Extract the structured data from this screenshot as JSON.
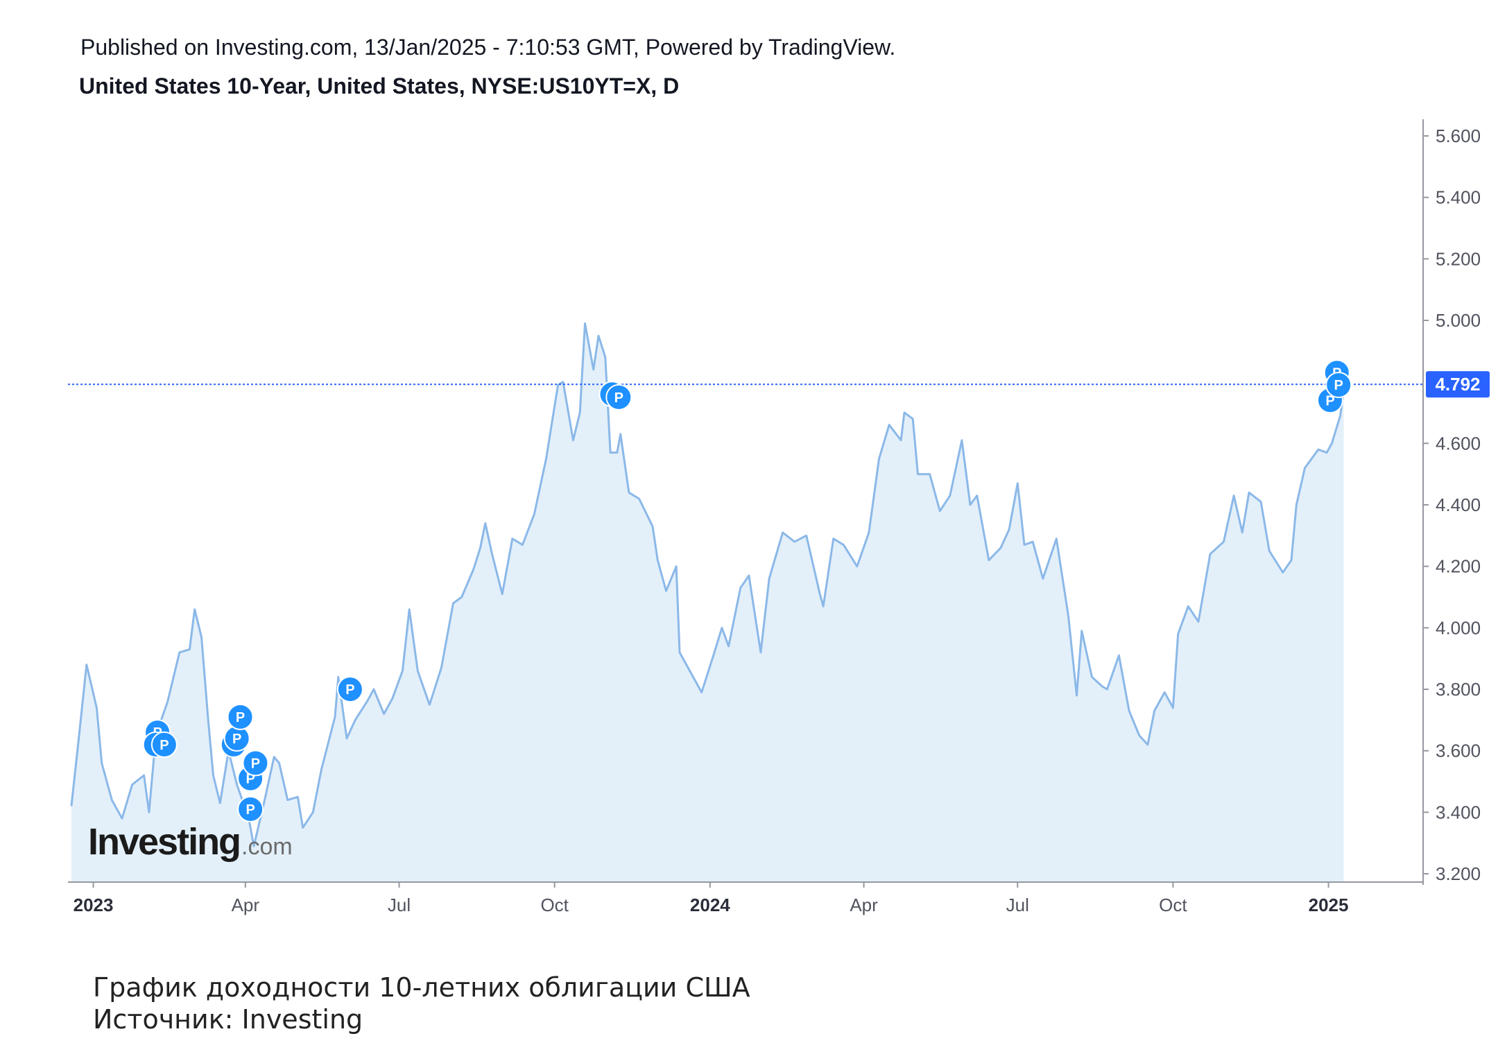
{
  "header": {
    "published": "Published on Investing.com, 13/Jan/2025 - 7:10:53 GMT, Powered by TradingView.",
    "symbol": "United States 10-Year, United States, NYSE:US10YT=X, D"
  },
  "caption": {
    "line1": "График доходности 10-летних облигации США",
    "line2": "Источник: Investing"
  },
  "logo": {
    "main": "Investing",
    "suffix": ".com"
  },
  "colors": {
    "line": "#8bb8e8",
    "fill": "#e3f0fa",
    "marker": "#1e90ff",
    "price_label": "#2962ff",
    "price_line": "#2962ff",
    "axis": "#9598a1"
  },
  "chart_data": {
    "type": "area",
    "title": "United States 10-Year, United States, NYSE:US10YT=X, D",
    "xlabel": "",
    "ylabel": "",
    "ylim": [
      3.2,
      5.6
    ],
    "xlim": [
      "2022-12-17",
      "2025-02-26"
    ],
    "y_ticks": [
      "5.600",
      "5.400",
      "5.200",
      "5.000",
      "4.600",
      "4.400",
      "4.200",
      "4.000",
      "3.800",
      "3.600",
      "3.400",
      "3.200"
    ],
    "x_ticks": [
      {
        "label": "2023",
        "date": "2023-01-01",
        "bold": true
      },
      {
        "label": "Apr",
        "date": "2023-04-01",
        "bold": false
      },
      {
        "label": "Jul",
        "date": "2023-07-01",
        "bold": false
      },
      {
        "label": "Oct",
        "date": "2023-10-01",
        "bold": false
      },
      {
        "label": "2024",
        "date": "2024-01-01",
        "bold": true
      },
      {
        "label": "Apr",
        "date": "2024-04-01",
        "bold": false
      },
      {
        "label": "Jul",
        "date": "2024-07-01",
        "bold": false
      },
      {
        "label": "Oct",
        "date": "2024-10-01",
        "bold": false
      },
      {
        "label": "2025",
        "date": "2025-01-01",
        "bold": true
      }
    ],
    "last_price": {
      "label": "4.792",
      "value": 4.792
    },
    "series": [
      {
        "points": [
          [
            "2022-12-19",
            3.42
          ],
          [
            "2022-12-23",
            3.62
          ],
          [
            "2022-12-28",
            3.88
          ],
          [
            "2023-01-03",
            3.74
          ],
          [
            "2023-01-06",
            3.56
          ],
          [
            "2023-01-12",
            3.44
          ],
          [
            "2023-01-18",
            3.38
          ],
          [
            "2023-01-24",
            3.49
          ],
          [
            "2023-01-31",
            3.52
          ],
          [
            "2023-02-03",
            3.4
          ],
          [
            "2023-02-07",
            3.65
          ],
          [
            "2023-02-14",
            3.76
          ],
          [
            "2023-02-21",
            3.92
          ],
          [
            "2023-02-27",
            3.93
          ],
          [
            "2023-03-02",
            4.06
          ],
          [
            "2023-03-06",
            3.97
          ],
          [
            "2023-03-10",
            3.7
          ],
          [
            "2023-03-13",
            3.52
          ],
          [
            "2023-03-17",
            3.43
          ],
          [
            "2023-03-22",
            3.6
          ],
          [
            "2023-03-27",
            3.49
          ],
          [
            "2023-04-03",
            3.38
          ],
          [
            "2023-04-06",
            3.29
          ],
          [
            "2023-04-12",
            3.43
          ],
          [
            "2023-04-18",
            3.58
          ],
          [
            "2023-04-21",
            3.56
          ],
          [
            "2023-04-26",
            3.44
          ],
          [
            "2023-05-02",
            3.45
          ],
          [
            "2023-05-05",
            3.35
          ],
          [
            "2023-05-11",
            3.4
          ],
          [
            "2023-05-16",
            3.54
          ],
          [
            "2023-05-24",
            3.71
          ],
          [
            "2023-05-26",
            3.84
          ],
          [
            "2023-05-31",
            3.64
          ],
          [
            "2023-06-05",
            3.7
          ],
          [
            "2023-06-12",
            3.76
          ],
          [
            "2023-06-16",
            3.8
          ],
          [
            "2023-06-22",
            3.72
          ],
          [
            "2023-06-27",
            3.77
          ],
          [
            "2023-07-03",
            3.86
          ],
          [
            "2023-07-07",
            4.06
          ],
          [
            "2023-07-12",
            3.86
          ],
          [
            "2023-07-19",
            3.75
          ],
          [
            "2023-07-26",
            3.87
          ],
          [
            "2023-08-02",
            4.08
          ],
          [
            "2023-08-07",
            4.1
          ],
          [
            "2023-08-14",
            4.19
          ],
          [
            "2023-08-18",
            4.26
          ],
          [
            "2023-08-21",
            4.34
          ],
          [
            "2023-08-25",
            4.24
          ],
          [
            "2023-08-31",
            4.11
          ],
          [
            "2023-09-06",
            4.29
          ],
          [
            "2023-09-12",
            4.27
          ],
          [
            "2023-09-19",
            4.37
          ],
          [
            "2023-09-26",
            4.55
          ],
          [
            "2023-10-03",
            4.79
          ],
          [
            "2023-10-06",
            4.8
          ],
          [
            "2023-10-12",
            4.61
          ],
          [
            "2023-10-16",
            4.7
          ],
          [
            "2023-10-19",
            4.99
          ],
          [
            "2023-10-24",
            4.84
          ],
          [
            "2023-10-27",
            4.95
          ],
          [
            "2023-10-31",
            4.88
          ],
          [
            "2023-11-03",
            4.57
          ],
          [
            "2023-11-07",
            4.57
          ],
          [
            "2023-11-09",
            4.63
          ],
          [
            "2023-11-14",
            4.44
          ],
          [
            "2023-11-20",
            4.42
          ],
          [
            "2023-11-28",
            4.33
          ],
          [
            "2023-12-01",
            4.22
          ],
          [
            "2023-12-06",
            4.12
          ],
          [
            "2023-12-12",
            4.2
          ],
          [
            "2023-12-14",
            3.92
          ],
          [
            "2023-12-20",
            3.86
          ],
          [
            "2023-12-27",
            3.79
          ],
          [
            "2024-01-03",
            3.91
          ],
          [
            "2024-01-08",
            4.0
          ],
          [
            "2024-01-12",
            3.94
          ],
          [
            "2024-01-19",
            4.13
          ],
          [
            "2024-01-24",
            4.17
          ],
          [
            "2024-01-31",
            3.92
          ],
          [
            "2024-02-05",
            4.16
          ],
          [
            "2024-02-13",
            4.31
          ],
          [
            "2024-02-20",
            4.28
          ],
          [
            "2024-02-27",
            4.3
          ],
          [
            "2024-03-06",
            4.11
          ],
          [
            "2024-03-08",
            4.07
          ],
          [
            "2024-03-14",
            4.29
          ],
          [
            "2024-03-20",
            4.27
          ],
          [
            "2024-03-28",
            4.2
          ],
          [
            "2024-04-04",
            4.31
          ],
          [
            "2024-04-10",
            4.55
          ],
          [
            "2024-04-16",
            4.66
          ],
          [
            "2024-04-23",
            4.61
          ],
          [
            "2024-04-25",
            4.7
          ],
          [
            "2024-04-30",
            4.68
          ],
          [
            "2024-05-03",
            4.5
          ],
          [
            "2024-05-10",
            4.5
          ],
          [
            "2024-05-16",
            4.38
          ],
          [
            "2024-05-22",
            4.43
          ],
          [
            "2024-05-29",
            4.61
          ],
          [
            "2024-06-03",
            4.4
          ],
          [
            "2024-06-07",
            4.43
          ],
          [
            "2024-06-14",
            4.22
          ],
          [
            "2024-06-21",
            4.26
          ],
          [
            "2024-06-26",
            4.32
          ],
          [
            "2024-07-01",
            4.47
          ],
          [
            "2024-07-05",
            4.27
          ],
          [
            "2024-07-10",
            4.28
          ],
          [
            "2024-07-16",
            4.16
          ],
          [
            "2024-07-24",
            4.29
          ],
          [
            "2024-07-31",
            4.04
          ],
          [
            "2024-08-05",
            3.78
          ],
          [
            "2024-08-08",
            3.99
          ],
          [
            "2024-08-14",
            3.84
          ],
          [
            "2024-08-20",
            3.81
          ],
          [
            "2024-08-23",
            3.8
          ],
          [
            "2024-08-30",
            3.91
          ],
          [
            "2024-09-05",
            3.73
          ],
          [
            "2024-09-11",
            3.65
          ],
          [
            "2024-09-16",
            3.62
          ],
          [
            "2024-09-20",
            3.73
          ],
          [
            "2024-09-26",
            3.79
          ],
          [
            "2024-10-01",
            3.74
          ],
          [
            "2024-10-04",
            3.98
          ],
          [
            "2024-10-10",
            4.07
          ],
          [
            "2024-10-16",
            4.02
          ],
          [
            "2024-10-23",
            4.24
          ],
          [
            "2024-10-31",
            4.28
          ],
          [
            "2024-11-06",
            4.43
          ],
          [
            "2024-11-11",
            4.31
          ],
          [
            "2024-11-15",
            4.44
          ],
          [
            "2024-11-22",
            4.41
          ],
          [
            "2024-11-27",
            4.25
          ],
          [
            "2024-12-05",
            4.18
          ],
          [
            "2024-12-10",
            4.22
          ],
          [
            "2024-12-13",
            4.4
          ],
          [
            "2024-12-18",
            4.52
          ],
          [
            "2024-12-26",
            4.58
          ],
          [
            "2024-12-31",
            4.57
          ],
          [
            "2025-01-03",
            4.6
          ],
          [
            "2025-01-08",
            4.69
          ],
          [
            "2025-01-10",
            4.77
          ]
        ]
      }
    ],
    "markers": [
      {
        "label": "P",
        "date": "2023-02-08",
        "value": 3.66
      },
      {
        "label": "P",
        "date": "2023-02-07",
        "value": 3.62
      },
      {
        "label": "P",
        "date": "2023-02-12",
        "value": 3.62
      },
      {
        "label": "P",
        "date": "2023-03-25",
        "value": 3.62
      },
      {
        "label": "P",
        "date": "2023-03-27",
        "value": 3.64
      },
      {
        "label": "P",
        "date": "2023-03-29",
        "value": 3.71
      },
      {
        "label": "P",
        "date": "2023-04-04",
        "value": 3.51
      },
      {
        "label": "P",
        "date": "2023-04-07",
        "value": 3.56
      },
      {
        "label": "P",
        "date": "2023-04-04",
        "value": 3.41
      },
      {
        "label": "P",
        "date": "2023-06-02",
        "value": 3.8
      },
      {
        "label": "P",
        "date": "2023-11-04",
        "value": 4.76
      },
      {
        "label": "P",
        "date": "2023-11-08",
        "value": 4.75
      },
      {
        "label": "P",
        "date": "2025-01-02",
        "value": 4.74
      },
      {
        "label": "P",
        "date": "2025-01-06",
        "value": 4.83
      },
      {
        "label": "P",
        "date": "2025-01-07",
        "value": 4.79
      }
    ]
  }
}
